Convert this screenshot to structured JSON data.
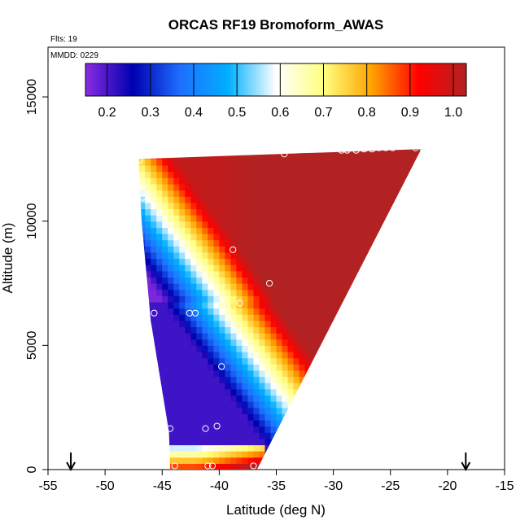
{
  "chart_data": {
    "type": "heatmap",
    "title": "ORCAS RF19 Bromoform_AWAS",
    "annotations": {
      "flights": "Flts: 19",
      "date": "MMDD: 0229"
    },
    "xlabel": "Latitude (deg N)",
    "ylabel": "Altitude (m)",
    "xlim": [
      -55,
      -15
    ],
    "ylim": [
      0,
      17000
    ],
    "x_ticks": [
      -55,
      -50,
      -45,
      -40,
      -35,
      -30,
      -25,
      -20,
      -15
    ],
    "y_ticks": [
      0,
      5000,
      10000,
      15000
    ],
    "colorbar": {
      "range": [
        0.15,
        1.03
      ],
      "tick_values": [
        0.2,
        0.3,
        0.4,
        0.5,
        0.6,
        0.7,
        0.8,
        0.9,
        1.0
      ],
      "tick_labels": [
        "0.2",
        "0.3",
        "0.4",
        "0.5",
        "0.6",
        "0.7",
        "0.8",
        "0.9",
        "1.0"
      ],
      "colors": [
        "#8a2be2",
        "#0000b0",
        "#1e6fff",
        "#00b0ff",
        "#ffffff",
        "#ffff80",
        "#ffa500",
        "#ff0000",
        "#b22222"
      ]
    },
    "field_polygon": [
      {
        "lat": -47.1,
        "alt": 12500
      },
      {
        "lat": -22.3,
        "alt": 12900
      },
      {
        "lat": -36.7,
        "alt": 0
      },
      {
        "lat": -44.3,
        "alt": 0
      },
      {
        "lat": -44.4,
        "alt": 1500
      },
      {
        "lat": -46.0,
        "alt": 6000
      },
      {
        "lat": -46.8,
        "alt": 10000
      }
    ],
    "arrows": [
      {
        "lat": -53.0,
        "alt": 400
      },
      {
        "lat": -18.4,
        "alt": 400
      }
    ],
    "observations": [
      {
        "lat": -47.0,
        "alt": 12450
      },
      {
        "lat": -46.7,
        "alt": 10950
      },
      {
        "lat": -34.3,
        "alt": 12700
      },
      {
        "lat": -29.3,
        "alt": 12850
      },
      {
        "lat": -28.8,
        "alt": 12850
      },
      {
        "lat": -28.0,
        "alt": 12850
      },
      {
        "lat": -27.3,
        "alt": 12900
      },
      {
        "lat": -26.6,
        "alt": 12900
      },
      {
        "lat": -26.0,
        "alt": 12950
      },
      {
        "lat": -25.4,
        "alt": 12950
      },
      {
        "lat": -24.8,
        "alt": 12950
      },
      {
        "lat": -22.8,
        "alt": 12950
      },
      {
        "lat": -22.2,
        "alt": 12950
      },
      {
        "lat": -38.8,
        "alt": 8850
      },
      {
        "lat": -35.6,
        "alt": 7500
      },
      {
        "lat": -38.2,
        "alt": 6700
      },
      {
        "lat": -39.3,
        "alt": 6550
      },
      {
        "lat": -42.6,
        "alt": 6300
      },
      {
        "lat": -42.1,
        "alt": 6300
      },
      {
        "lat": -45.7,
        "alt": 6300
      },
      {
        "lat": -39.8,
        "alt": 4150
      },
      {
        "lat": -40.2,
        "alt": 1750
      },
      {
        "lat": -41.2,
        "alt": 1650
      },
      {
        "lat": -44.3,
        "alt": 1650
      },
      {
        "lat": -43.9,
        "alt": 150
      },
      {
        "lat": -41.0,
        "alt": 150
      },
      {
        "lat": -40.6,
        "alt": 150
      },
      {
        "lat": -37.0,
        "alt": 150
      }
    ]
  }
}
